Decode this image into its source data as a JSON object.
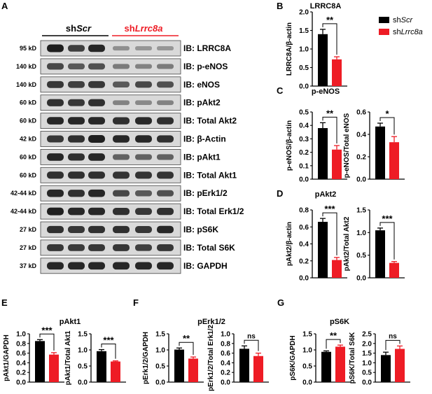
{
  "colors": {
    "control": "#000000",
    "knockdown": "#ee1c25",
    "blot_bg": "#d9d9d9"
  },
  "panel_letters": [
    "A",
    "B",
    "C",
    "D",
    "E",
    "F",
    "G"
  ],
  "blot": {
    "groups": [
      {
        "prefix": "sh",
        "italic": "Scr",
        "color": "#000000"
      },
      {
        "prefix": "sh",
        "italic": "Lrrc8a",
        "color": "#ee1c25"
      }
    ],
    "rows": [
      {
        "mw": "95 kD",
        "label": "IB: LRRC8A",
        "intensity": [
          0.85,
          0.65,
          0.8,
          0.18,
          0.14,
          0.14
        ]
      },
      {
        "mw": "140 kD",
        "label": "IB: p-eNOS",
        "intensity": [
          0.6,
          0.5,
          0.55,
          0.3,
          0.25,
          0.3
        ]
      },
      {
        "mw": "140 kD",
        "label": "IB: eNOS",
        "intensity": [
          0.7,
          0.65,
          0.7,
          0.5,
          0.6,
          0.55
        ]
      },
      {
        "mw": "60 kD",
        "label": "IB: pAkt2",
        "intensity": [
          0.75,
          0.7,
          0.75,
          0.25,
          0.22,
          0.25
        ]
      },
      {
        "mw": "60 kD",
        "label": "IB: Total Akt2",
        "intensity": [
          0.8,
          0.8,
          0.8,
          0.75,
          0.78,
          0.75
        ]
      },
      {
        "mw": "42 kD",
        "label": "IB: β-Actin",
        "intensity": [
          0.7,
          0.75,
          0.85,
          0.8,
          0.8,
          0.75
        ]
      },
      {
        "mw": "60 kD",
        "label": "IB: pAkt1",
        "intensity": [
          0.8,
          0.75,
          0.8,
          0.45,
          0.45,
          0.45
        ]
      },
      {
        "mw": "60 kD",
        "label": "IB: Total Akt1",
        "intensity": [
          0.75,
          0.75,
          0.75,
          0.72,
          0.72,
          0.72
        ]
      },
      {
        "mw": "42-44 kD",
        "label": "IB: pErk1/2",
        "intensity": [
          0.8,
          0.75,
          0.8,
          0.6,
          0.5,
          0.55
        ]
      },
      {
        "mw": "42-44 kD",
        "label": "IB: Total Erk1/2",
        "intensity": [
          0.85,
          0.8,
          0.8,
          0.75,
          0.7,
          0.75
        ]
      },
      {
        "mw": "27 kD",
        "label": "IB: pS6K",
        "intensity": [
          0.75,
          0.7,
          0.75,
          0.75,
          0.7,
          0.8
        ]
      },
      {
        "mw": "27 kD",
        "label": "IB: Total S6K",
        "intensity": [
          0.7,
          0.68,
          0.7,
          0.7,
          0.65,
          0.7
        ]
      },
      {
        "mw": "37 kD",
        "label": "IB: GAPDH",
        "intensity": [
          0.8,
          0.8,
          0.8,
          0.8,
          0.8,
          0.8
        ]
      }
    ]
  },
  "legend": [
    {
      "prefix": "sh",
      "italic": "Scr",
      "color": "#000000"
    },
    {
      "prefix": "sh",
      "italic": "Lrrc8a",
      "color": "#ee1c25"
    }
  ],
  "panel_titles": {
    "B": "LRRC8A",
    "C": "p-eNOS",
    "D": "pAkt2",
    "E": "pAkt1",
    "F": "pErk1/2",
    "G": "pS6K"
  },
  "chart_data": [
    {
      "type": "bar",
      "panel": "B",
      "categories": [
        "shScr",
        "shLrrc8a"
      ],
      "values": [
        1.4,
        0.72
      ],
      "errors": [
        0.13,
        0.07
      ],
      "ylabel": "LRRC8A/β-actin",
      "ylim": [
        0,
        2.0
      ],
      "yticks": [
        "0.0",
        "0.5",
        "1.0",
        "1.5",
        "2.0"
      ],
      "significance": "**"
    },
    {
      "type": "bar",
      "panel": "C",
      "categories": [
        "shScr",
        "shLrrc8a"
      ],
      "values": [
        0.38,
        0.22
      ],
      "errors": [
        0.04,
        0.03
      ],
      "ylabel": "p-eNOS/β-actin",
      "ylim": [
        0,
        0.5
      ],
      "yticks": [
        "0.0",
        "0.1",
        "0.2",
        "0.3",
        "0.4",
        "0.5"
      ],
      "significance": "**"
    },
    {
      "type": "bar",
      "panel": "C",
      "categories": [
        "shScr",
        "shLrrc8a"
      ],
      "values": [
        0.47,
        0.33
      ],
      "errors": [
        0.03,
        0.05
      ],
      "ylabel": "p-eNOS/Total eNOS",
      "ylim": [
        0,
        0.6
      ],
      "yticks": [
        "0.0",
        "0.2",
        "0.4",
        "0.6"
      ],
      "significance": "*"
    },
    {
      "type": "bar",
      "panel": "D",
      "categories": [
        "shScr",
        "shLrrc8a"
      ],
      "values": [
        0.66,
        0.21
      ],
      "errors": [
        0.04,
        0.03
      ],
      "ylabel": "pAkt2/β-actin",
      "ylim": [
        0,
        0.8
      ],
      "yticks": [
        "0.0",
        "0.2",
        "0.4",
        "0.6",
        "0.8"
      ],
      "significance": "***"
    },
    {
      "type": "bar",
      "panel": "D",
      "categories": [
        "shScr",
        "shLrrc8a"
      ],
      "values": [
        1.05,
        0.33
      ],
      "errors": [
        0.05,
        0.03
      ],
      "ylabel": "pAkt2/Total Akt2",
      "ylim": [
        0,
        1.5
      ],
      "yticks": [
        "0.0",
        "0.5",
        "1.0",
        "1.5"
      ],
      "significance": "***"
    },
    {
      "type": "bar",
      "panel": "E",
      "categories": [
        "shScr",
        "shLrrc8a"
      ],
      "values": [
        0.85,
        0.57
      ],
      "errors": [
        0.03,
        0.04
      ],
      "ylabel": "pAkt1/GAPDH",
      "ylim": [
        0,
        1.0
      ],
      "yticks": [
        "0.0",
        "0.2",
        "0.4",
        "0.6",
        "0.8",
        "1.0"
      ],
      "significance": "***"
    },
    {
      "type": "bar",
      "panel": "E",
      "categories": [
        "shScr",
        "shLrrc8a"
      ],
      "values": [
        0.96,
        0.64
      ],
      "errors": [
        0.05,
        0.02
      ],
      "ylabel": "pAkt1/Total Akt1",
      "ylim": [
        0,
        1.5
      ],
      "yticks": [
        "0.0",
        "0.5",
        "1.0",
        "1.5"
      ],
      "significance": "***"
    },
    {
      "type": "bar",
      "panel": "F",
      "categories": [
        "shScr",
        "shLrrc8a"
      ],
      "values": [
        1.01,
        0.73
      ],
      "errors": [
        0.05,
        0.05
      ],
      "ylabel": "pErk1/2/GAPDH",
      "ylim": [
        0,
        1.5
      ],
      "yticks": [
        "0.0",
        "0.5",
        "1.0",
        "1.5"
      ],
      "significance": "**"
    },
    {
      "type": "bar",
      "panel": "F",
      "categories": [
        "shScr",
        "shLrrc8a"
      ],
      "values": [
        0.69,
        0.54
      ],
      "errors": [
        0.06,
        0.06
      ],
      "ylabel": "pErk1/2/Total Erk1/2",
      "ylim": [
        0,
        1.0
      ],
      "yticks": [
        "0.0",
        "0.2",
        "0.4",
        "0.6",
        "0.8",
        "1.0"
      ],
      "significance": "ns"
    },
    {
      "type": "bar",
      "panel": "G",
      "categories": [
        "shScr",
        "shLrrc8a"
      ],
      "values": [
        0.94,
        1.1
      ],
      "errors": [
        0.03,
        0.05
      ],
      "ylabel": "pS6K/GAPDH",
      "ylim": [
        0,
        1.5
      ],
      "yticks": [
        "0.0",
        "0.5",
        "1.0",
        "1.5"
      ],
      "significance": "**"
    },
    {
      "type": "bar",
      "panel": "G",
      "categories": [
        "shScr",
        "shLrrc8a"
      ],
      "values": [
        1.4,
        1.72
      ],
      "errors": [
        0.15,
        0.15
      ],
      "ylabel": "pS6K/Total S6K",
      "ylim": [
        0,
        2.5
      ],
      "yticks": [
        "0.0",
        "0.5",
        "1.0",
        "1.5",
        "2.0",
        "2.5"
      ],
      "significance": "ns"
    }
  ]
}
